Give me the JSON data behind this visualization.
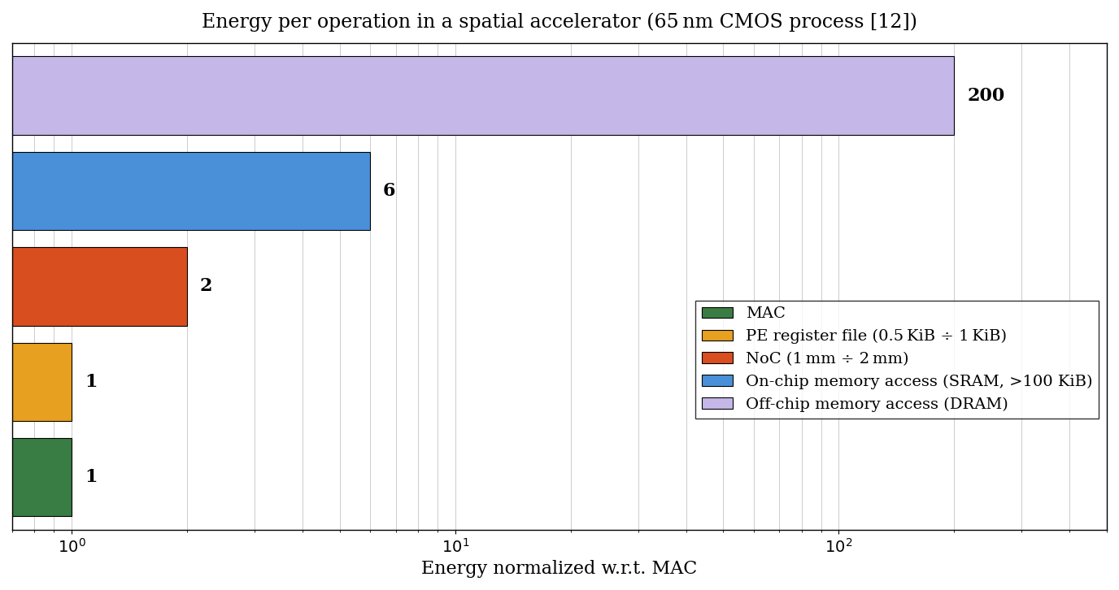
{
  "title": "Energy per operation in a spatial accelerator (65 nm CMOS process [12])",
  "xlabel": "Energy normalized w.r.t. MAC",
  "categories_bottom_to_top": [
    "MAC",
    "PE register file (0.5 KiB ÷ 1 KiB)",
    "NoC (1 mm ÷ 2 mm)",
    "On-chip memory access (SRAM, >100 KiB)",
    "Off-chip memory access (DRAM)"
  ],
  "values_bottom_to_top": [
    1,
    1,
    2,
    6,
    200
  ],
  "colors_bottom_to_top": [
    "#3a7d44",
    "#e8a020",
    "#d94e1f",
    "#4a90d9",
    "#c5b8e8"
  ],
  "bar_labels_bottom_to_top": [
    "1",
    "1",
    "2",
    "6",
    "200"
  ],
  "xlim_log": [
    0.7,
    500
  ],
  "legend_labels": [
    "MAC",
    "PE register file (0.5 KiB ÷ 1 KiB)",
    "NoC (1 mm ÷ 2 mm)",
    "On-chip memory access (SRAM, >100 KiB)",
    "Off-chip memory access (DRAM)"
  ],
  "legend_colors": [
    "#3a7d44",
    "#e8a020",
    "#d94e1f",
    "#4a90d9",
    "#c5b8e8"
  ],
  "background_color": "#ffffff",
  "title_fontsize": 17,
  "label_fontsize": 15,
  "tick_fontsize": 13,
  "legend_fontsize": 13
}
